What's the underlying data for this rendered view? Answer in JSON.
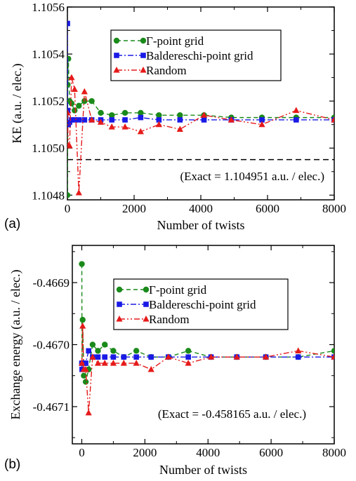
{
  "chart_data": [
    {
      "panel_label": "(a)",
      "type": "line",
      "xlabel": "Number of twists",
      "ylabel": "KE (a.u. / elec.)",
      "xlim": [
        0,
        8000
      ],
      "ylim": [
        1.10478,
        1.1056
      ],
      "xticks": [
        0,
        2000,
        4000,
        6000,
        8000
      ],
      "xtick_labels": [
        "0",
        "2000",
        "4000",
        "6000",
        "8000"
      ],
      "yticks": [
        1.1048,
        1.105,
        1.1052,
        1.1054,
        1.1056
      ],
      "ytick_labels": [
        "1.1048",
        "1.1050",
        "1.1052",
        "1.1054",
        "1.1056"
      ],
      "exact_value": 1.104951,
      "annotation": "(Exact = 1.104951 a.u. / elec.)",
      "legend_position": "top-right",
      "series": [
        {
          "name": "Γ-point grid",
          "color": "#1a8a1a",
          "marker": "circle",
          "dash": "6,4",
          "x": [
            1,
            8,
            27,
            64,
            125,
            216,
            343,
            512,
            729,
            1000,
            1331,
            1728,
            2197,
            2744,
            3375,
            4096,
            4913,
            5832,
            6859,
            8000
          ],
          "y": [
            1.1048,
            1.10527,
            1.10538,
            1.1052,
            1.10519,
            1.10516,
            1.10518,
            1.1052,
            1.1052,
            1.10515,
            1.10514,
            1.10515,
            1.10515,
            1.10514,
            1.10514,
            1.10514,
            1.10513,
            1.10513,
            1.10513,
            1.10513
          ]
        },
        {
          "name": "Baldereschi-point grid",
          "color": "#1a1ae6",
          "marker": "square",
          "dash": "8,3,2,3",
          "x": [
            1,
            8,
            27,
            64,
            125,
            216,
            343,
            512,
            729,
            1000,
            1331,
            1728,
            2197,
            2744,
            3375,
            4096,
            4913,
            5832,
            6859,
            8000
          ],
          "y": [
            1.10553,
            1.10516,
            1.1051,
            1.10511,
            1.10512,
            1.10512,
            1.10512,
            1.10512,
            1.10512,
            1.10512,
            1.10512,
            1.10512,
            1.10513,
            1.10512,
            1.10512,
            1.10512,
            1.10512,
            1.10512,
            1.10512,
            1.10512
          ]
        },
        {
          "name": "Random",
          "color": "#e61a1a",
          "marker": "triangle",
          "dash": "8,3,2,3,2,3",
          "x": [
            1,
            27,
            64,
            125,
            216,
            343,
            512,
            729,
            1000,
            1331,
            1728,
            2197,
            2744,
            3375,
            4096,
            4913,
            5832,
            6859,
            8000
          ],
          "y": [
            1.10515,
            1.10501,
            1.10501,
            1.1053,
            1.10525,
            1.10481,
            1.10524,
            1.10512,
            1.10511,
            1.10509,
            1.10509,
            1.10507,
            1.1051,
            1.10508,
            1.10514,
            1.10512,
            1.1051,
            1.10516,
            1.10512
          ]
        }
      ]
    },
    {
      "panel_label": "(b)",
      "type": "line",
      "xlabel": "Number of twists",
      "ylabel": "Exchange energy (a.u. / elec.)",
      "xlim": [
        -300,
        8000
      ],
      "ylim": [
        -0.46716,
        -0.46684
      ],
      "xticks": [
        0,
        2000,
        4000,
        6000,
        8000
      ],
      "xtick_labels": [
        "0",
        "2000",
        "4000",
        "6000",
        "8000"
      ],
      "yticks": [
        -0.4671,
        -0.467,
        -0.4669
      ],
      "ytick_labels": [
        "-0.4671",
        "-0.4670",
        "-0.4669"
      ],
      "annotation": "(Exact = -0.458165 a.u. / elec.)",
      "legend_position": "top-right",
      "series": [
        {
          "name": "Γ-point grid",
          "color": "#1a8a1a",
          "marker": "circle",
          "dash": "6,4",
          "x": [
            1,
            8,
            27,
            64,
            125,
            216,
            343,
            512,
            729,
            1000,
            1331,
            1728,
            2197,
            2744,
            3375,
            4096,
            4913,
            5832,
            6859,
            8000
          ],
          "y": [
            -0.46687,
            -0.46703,
            -0.46696,
            -0.46705,
            -0.46706,
            -0.46704,
            -0.467,
            -0.46701,
            -0.467,
            -0.46701,
            -0.46702,
            -0.46701,
            -0.46702,
            -0.46702,
            -0.46701,
            -0.46702,
            -0.46702,
            -0.46702,
            -0.46702,
            -0.46701
          ]
        },
        {
          "name": "Baldereschi-point grid",
          "color": "#1a1ae6",
          "marker": "square",
          "dash": "8,3,2,3",
          "x": [
            1,
            8,
            27,
            64,
            125,
            216,
            343,
            512,
            729,
            1000,
            1331,
            1728,
            2197,
            2744,
            3375,
            4096,
            4913,
            5832,
            6859,
            8000
          ],
          "y": [
            -0.46703,
            -0.46704,
            -0.46703,
            -0.46703,
            -0.46703,
            -0.46701,
            -0.46702,
            -0.46702,
            -0.46702,
            -0.46702,
            -0.46702,
            -0.46702,
            -0.46702,
            -0.46702,
            -0.46702,
            -0.46702,
            -0.46702,
            -0.46702,
            -0.46702,
            -0.46702
          ]
        },
        {
          "name": "Random",
          "color": "#e61a1a",
          "marker": "triangle",
          "dash": "8,3,2,3,2,3",
          "x": [
            1,
            27,
            64,
            125,
            216,
            343,
            512,
            729,
            1000,
            1331,
            1728,
            2197,
            2744,
            3375,
            4096,
            4913,
            5832,
            6859,
            8000
          ],
          "y": [
            -0.46703,
            -0.46697,
            -0.46704,
            -0.46704,
            -0.46711,
            -0.46702,
            -0.46703,
            -0.46703,
            -0.46703,
            -0.46703,
            -0.46703,
            -0.46704,
            -0.46702,
            -0.46703,
            -0.46702,
            -0.46702,
            -0.46702,
            -0.46701,
            -0.46702
          ]
        }
      ]
    }
  ]
}
